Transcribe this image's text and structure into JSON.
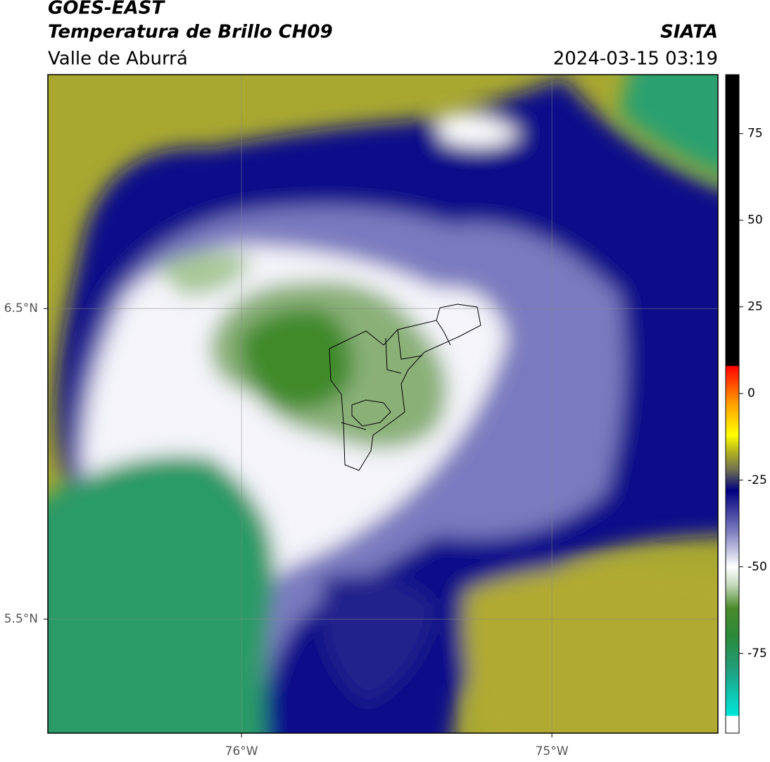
{
  "chart_data": {
    "type": "map",
    "title": "GOES-EAST",
    "subtitle": "Temperatura de Brillo CH09",
    "region": "Valle de Aburrá",
    "source": "SIATA",
    "datetime": "2024-03-15 03:19",
    "xlim": [
      -76.624,
      -74.465
    ],
    "ylim": [
      5.133,
      7.253
    ],
    "xticks": [
      {
        "value": -76,
        "label": "76°W"
      },
      {
        "value": -75,
        "label": "75°W"
      }
    ],
    "yticks": [
      {
        "value": 6.5,
        "label": "6.5°N"
      },
      {
        "value": 5.5,
        "label": "5.5°N"
      }
    ],
    "grid": true,
    "colorbar": {
      "lim": [
        -98,
        92
      ],
      "ticks": [
        -75,
        -50,
        -25,
        0,
        25,
        50,
        75
      ],
      "stops": [
        {
          "value": -98,
          "color": "#ffffff"
        },
        {
          "value": -93,
          "color": "#ffffff"
        },
        {
          "value": -93,
          "color": "#00e8dc"
        },
        {
          "value": -80,
          "color": "#20a080"
        },
        {
          "value": -70,
          "color": "#2a8a3a"
        },
        {
          "value": -62,
          "color": "#4a8a2a"
        },
        {
          "value": -55,
          "color": "#c8dcc0"
        },
        {
          "value": -50,
          "color": "#ffffff"
        },
        {
          "value": -40,
          "color": "#8080c0"
        },
        {
          "value": -28,
          "color": "#000080"
        },
        {
          "value": -22,
          "color": "#707050"
        },
        {
          "value": -17,
          "color": "#b0b020"
        },
        {
          "value": -12,
          "color": "#ffff00"
        },
        {
          "value": -3,
          "color": "#ffa000"
        },
        {
          "value": 8,
          "color": "#ff0000"
        },
        {
          "value": 8,
          "color": "#000000"
        },
        {
          "value": 92,
          "color": "#000000"
        }
      ]
    }
  }
}
